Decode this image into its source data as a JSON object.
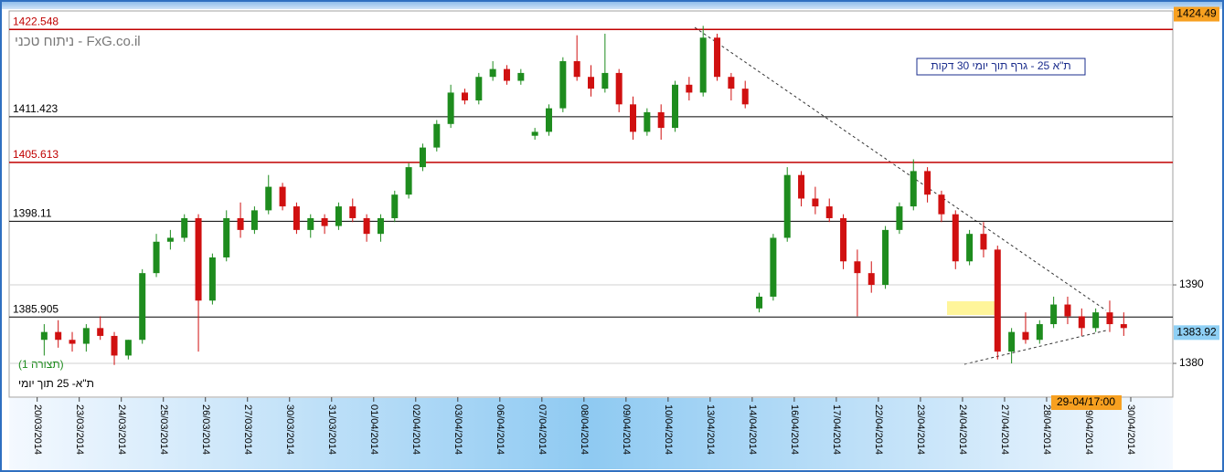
{
  "chart_data": {
    "type": "candlestick",
    "title": "ת\"א 25 - גרף תוך יומי 30 דקות",
    "watermark": "ניתוח טכני - FxG.co.il",
    "annotations": [
      "(תצורה 1)",
      "ת\"א- 25 תוך יומי"
    ],
    "time_label": "29-04/17:00",
    "high_price": 1424.49,
    "last_price": 1383.92,
    "ylim": [
      1375.7,
      1424.9
    ],
    "yticks": [
      1380,
      1390
    ],
    "grid": true,
    "xlim": [
      -2,
      81
    ],
    "xticks": [
      {
        "value": 0,
        "label": "20/03/2014"
      },
      {
        "value": 3,
        "label": "23/03/2014"
      },
      {
        "value": 6,
        "label": "24/03/2014"
      },
      {
        "value": 9,
        "label": "25/03/2014"
      },
      {
        "value": 12,
        "label": "26/03/2014"
      },
      {
        "value": 15,
        "label": "27/03/2014"
      },
      {
        "value": 18,
        "label": "30/03/2014"
      },
      {
        "value": 21,
        "label": "31/03/2014"
      },
      {
        "value": 24,
        "label": "01/04/2014"
      },
      {
        "value": 27,
        "label": "02/04/2014"
      },
      {
        "value": 30,
        "label": "03/04/2014"
      },
      {
        "value": 33,
        "label": "06/04/2014"
      },
      {
        "value": 36,
        "label": "07/04/2014"
      },
      {
        "value": 39,
        "label": "08/04/2014"
      },
      {
        "value": 42,
        "label": "09/04/2014"
      },
      {
        "value": 45,
        "label": "10/04/2014"
      },
      {
        "value": 48,
        "label": "13/04/2014"
      },
      {
        "value": 51,
        "label": "14/04/2014"
      },
      {
        "value": 54,
        "label": "16/04/2014"
      },
      {
        "value": 57,
        "label": "17/04/2014"
      },
      {
        "value": 60,
        "label": "22/04/2014"
      },
      {
        "value": 63,
        "label": "23/04/2014"
      },
      {
        "value": 66,
        "label": "24/04/2014"
      },
      {
        "value": 69,
        "label": "27/04/2014"
      },
      {
        "value": 72,
        "label": "28/04/2014"
      },
      {
        "value": 75,
        "label": "29/04/2014"
      },
      {
        "value": 78,
        "label": "30/04/2014"
      }
    ],
    "levels": [
      {
        "value": 1422.548,
        "color": "#c00000"
      },
      {
        "value": 1411.423,
        "color": "#000000"
      },
      {
        "value": 1405.613,
        "color": "#c00000"
      },
      {
        "value": 1398.11,
        "color": "#000000"
      },
      {
        "value": 1385.905,
        "color": "#000000"
      }
    ],
    "up_color": "#1e8c1e",
    "down_color": "#d01010",
    "candles": {
      "open": [
        1383,
        1384,
        1383,
        1382.5,
        1384.5,
        1383.5,
        1381,
        1383,
        1391.5,
        1395.5,
        1396,
        1398.5,
        1388,
        1393.5,
        1398.5,
        1397,
        1399.5,
        1402.5,
        1400,
        1397,
        1398.5,
        1397.5,
        1400,
        1398.5,
        1396.5,
        1398.5,
        1401.5,
        1405,
        1407.5,
        1410.5,
        1414.5,
        1413.5,
        1416.5,
        1417.5,
        1416,
        1409,
        1409.5,
        1412.5,
        1418.5,
        1416.5,
        1415,
        1417,
        1413,
        1409.5,
        1412,
        1410,
        1415.5,
        1414.5,
        1421.5,
        1416.5,
        1415,
        1387,
        1388.5,
        1396,
        1404,
        1401,
        1400,
        1398.5,
        1393,
        1391.5,
        1390,
        1397,
        1400,
        1404.5,
        1401.5,
        1399,
        1393,
        1396.5,
        1394.5,
        1381.5,
        1384,
        1383,
        1385,
        1387.5,
        1386,
        1384.5,
        1386.5,
        1385
      ],
      "high": [
        1385,
        1385.5,
        1384,
        1385,
        1386,
        1384,
        1383,
        1392,
        1396.5,
        1397,
        1399,
        1399,
        1394,
        1399.5,
        1400.5,
        1400,
        1404,
        1403,
        1400.5,
        1399,
        1399,
        1400.5,
        1401,
        1399,
        1399,
        1402,
        1405.5,
        1408,
        1411,
        1415.5,
        1415,
        1417,
        1418.5,
        1418,
        1417.5,
        1410,
        1413,
        1419,
        1421.8,
        1418,
        1422,
        1417.5,
        1414,
        1412.5,
        1413,
        1416,
        1416.5,
        1423,
        1422,
        1417,
        1416,
        1389,
        1396.5,
        1405,
        1404.5,
        1402.5,
        1401,
        1399,
        1394.5,
        1393,
        1397.5,
        1400.5,
        1406,
        1405,
        1402,
        1399.5,
        1397,
        1398,
        1395,
        1384.5,
        1386.5,
        1385.5,
        1388.5,
        1388.5,
        1387,
        1387,
        1388,
        1386.5
      ],
      "low": [
        1381,
        1382,
        1381.5,
        1381.5,
        1383,
        1379.8,
        1380.5,
        1382.5,
        1391,
        1394.5,
        1395.5,
        1381.5,
        1387.5,
        1393,
        1396,
        1396.5,
        1399,
        1399.5,
        1396.5,
        1396,
        1396.5,
        1397,
        1398,
        1395.5,
        1395.5,
        1398,
        1401,
        1404.5,
        1407,
        1410,
        1413,
        1413,
        1416,
        1415.5,
        1415.5,
        1408.5,
        1409,
        1412,
        1416,
        1414,
        1414.5,
        1412,
        1408.5,
        1409,
        1408.5,
        1409.5,
        1413.5,
        1414,
        1416,
        1413.5,
        1412.5,
        1386.5,
        1388,
        1395.5,
        1400,
        1399,
        1398,
        1392,
        1386,
        1389,
        1389.5,
        1396.5,
        1399.5,
        1400.5,
        1398,
        1392,
        1392.5,
        1393.5,
        1380.5,
        1380,
        1382.5,
        1382.5,
        1384.5,
        1385,
        1383.5,
        1384,
        1384,
        1383.5
      ],
      "close": [
        1384,
        1383,
        1382.5,
        1384.5,
        1383.5,
        1381,
        1383,
        1391.5,
        1395.5,
        1396,
        1398.5,
        1388,
        1393.5,
        1398.5,
        1397,
        1399.5,
        1402.5,
        1400,
        1397,
        1398.5,
        1397.5,
        1400,
        1398.5,
        1396.5,
        1398.5,
        1401.5,
        1405,
        1407.5,
        1410.5,
        1414.5,
        1413.5,
        1416.5,
        1417.5,
        1416,
        1417,
        1409.5,
        1412.5,
        1418.5,
        1416.5,
        1415,
        1417,
        1413,
        1409.5,
        1412,
        1410,
        1415.5,
        1414.5,
        1421.5,
        1416.5,
        1415,
        1413,
        1388.5,
        1396,
        1404,
        1401,
        1400,
        1398.5,
        1393,
        1391.5,
        1390,
        1397,
        1400,
        1404.5,
        1401.5,
        1399,
        1393,
        1396.5,
        1394.5,
        1381.5,
        1384,
        1383,
        1385,
        1387.5,
        1386,
        1384.5,
        1386.5,
        1385,
        1384.5
      ]
    }
  }
}
